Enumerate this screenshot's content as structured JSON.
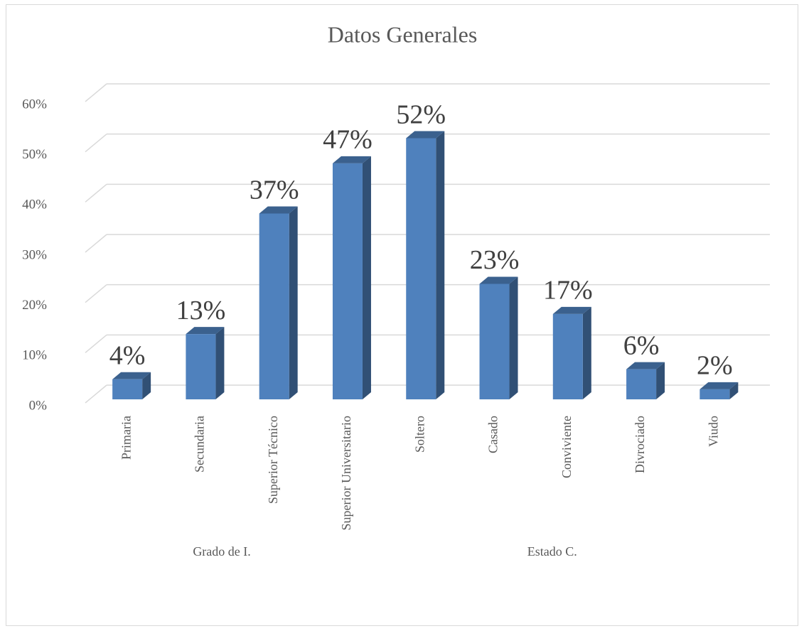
{
  "chart_data": {
    "type": "bar3d",
    "title": "Datos Generales",
    "categories": [
      "Primaria",
      "Secundaria",
      "Superior Técnico",
      "Superior Universitario",
      "Soltero",
      "Casado",
      "Conviviente",
      "Divrociado",
      "Viudo"
    ],
    "values": [
      4,
      13,
      37,
      47,
      52,
      23,
      17,
      6,
      2
    ],
    "value_labels": [
      "4%",
      "13%",
      "37%",
      "47%",
      "52%",
      "23%",
      "17%",
      "6%",
      "2%"
    ],
    "groups": [
      {
        "label": "Grado de I.",
        "count": 4
      },
      {
        "label": "Estado C.",
        "count": 5
      }
    ],
    "color": "#4f81bd",
    "ylim": [
      0,
      60
    ],
    "yticks": [
      {
        "value": 0,
        "label": "0%"
      },
      {
        "value": 10,
        "label": "10%"
      },
      {
        "value": 20,
        "label": "20%"
      },
      {
        "value": 30,
        "label": "30%"
      },
      {
        "value": 40,
        "label": "40%"
      },
      {
        "value": 50,
        "label": "50%"
      },
      {
        "value": 60,
        "label": "60%"
      }
    ],
    "grid": true
  }
}
